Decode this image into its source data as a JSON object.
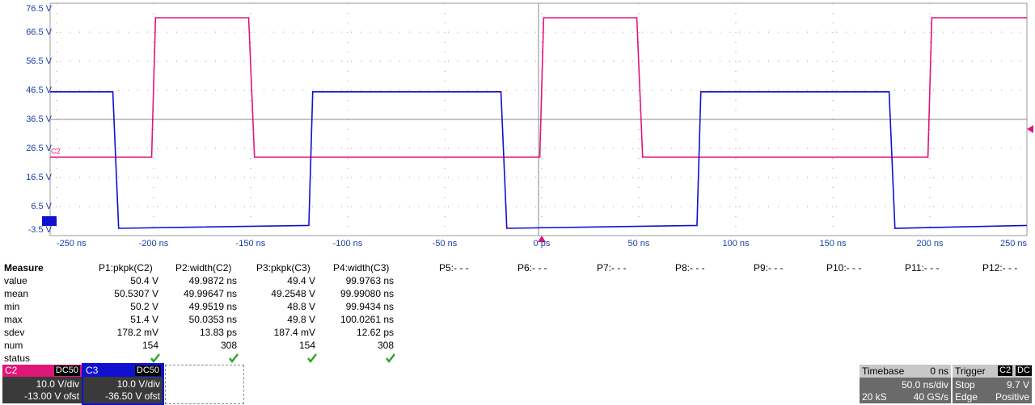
{
  "chart_data": {
    "type": "line",
    "series": [
      {
        "name": "C2",
        "color": "#e0157a",
        "x": [
          -253.3,
          -201,
          -199,
          -151,
          -148,
          -1,
          1,
          49,
          52,
          199,
          201,
          250
        ],
        "values": [
          23.5,
          23.5,
          71.5,
          71.5,
          23.5,
          23.5,
          71.5,
          71.5,
          23.5,
          23.5,
          71.5,
          71.5
        ]
      },
      {
        "name": "C3",
        "color": "#1010d0",
        "x": [
          -253.3,
          -221,
          -218,
          -120,
          -118,
          -21,
          -18,
          80,
          82,
          179,
          182,
          250
        ],
        "values": [
          46,
          46,
          -1,
          0,
          46,
          46,
          -1,
          0,
          46,
          46,
          -1,
          0
        ]
      }
    ],
    "xlim": [
      -253.3,
      250
    ],
    "xticks": [
      {
        "value": -250,
        "label": "-250 ns"
      },
      {
        "value": -200,
        "label": "-200 ns"
      },
      {
        "value": -150,
        "label": "-150 ns"
      },
      {
        "value": -100,
        "label": "-100 ns"
      },
      {
        "value": -50,
        "label": "-50 ns"
      },
      {
        "value": 0,
        "label": "0 ps"
      },
      {
        "value": 50,
        "label": "50 ns"
      },
      {
        "value": 100,
        "label": "100 ns"
      },
      {
        "value": 150,
        "label": "150 ns"
      },
      {
        "value": 200,
        "label": "200 ns"
      },
      {
        "value": 250,
        "label": "250 ns"
      }
    ],
    "ylim": [
      -3.5,
      76.5
    ],
    "yticks": [
      {
        "value": 76.5,
        "label": "76.5 V"
      },
      {
        "value": 66.5,
        "label": "66.5 V"
      },
      {
        "value": 56.5,
        "label": "56.5 V"
      },
      {
        "value": 46.5,
        "label": "46.5 V"
      },
      {
        "value": 36.5,
        "label": "36.5 V"
      },
      {
        "value": 26.5,
        "label": "26.5 V"
      },
      {
        "value": 16.5,
        "label": "16.5 V"
      },
      {
        "value": 6.5,
        "label": "6.5 V"
      },
      {
        "value": -3.5,
        "label": "-3.5 V"
      }
    ],
    "grid": true
  },
  "measure": {
    "header": [
      "Measure",
      "P1:pkpk(C2)",
      "P2:width(C2)",
      "P3:pkpk(C3)",
      "P4:width(C3)",
      "P5:- - -",
      "P6:- - -",
      "P7:- - -",
      "P8:- - -",
      "P9:- - -",
      "P10:- - -",
      "P11:- - -",
      "P12:- - -"
    ],
    "rows": [
      {
        "label": "value",
        "cells": [
          "50.4 V",
          "49.9872 ns",
          "49.4 V",
          "99.9763 ns"
        ]
      },
      {
        "label": "mean",
        "cells": [
          "50.5307 V",
          "49.99647 ns",
          "49.2548 V",
          "99.99080 ns"
        ]
      },
      {
        "label": "min",
        "cells": [
          "50.2 V",
          "49.9519 ns",
          "48.8 V",
          "99.9434 ns"
        ]
      },
      {
        "label": "max",
        "cells": [
          "51.4 V",
          "50.0353 ns",
          "49.8 V",
          "100.0261 ns"
        ]
      },
      {
        "label": "sdev",
        "cells": [
          "178.2 mV",
          "13.83 ps",
          "187.4 mV",
          "12.62 ps"
        ]
      },
      {
        "label": "num",
        "cells": [
          "154",
          "308",
          "154",
          "308"
        ]
      },
      {
        "label": "status"
      }
    ]
  },
  "channels": [
    {
      "name": "C2",
      "coupling": "DC50",
      "scale": "10.0 V/div",
      "offset": "-13.00 V ofst"
    },
    {
      "name": "C3",
      "coupling": "DC50",
      "scale": "10.0 V/div",
      "offset": "-36.50 V ofst"
    }
  ],
  "timebase": {
    "title": "Timebase",
    "delay": "0 ns",
    "scale": "50.0 ns/div",
    "samples": "20 kS",
    "rate": "40 GS/s"
  },
  "trigger": {
    "title": "Trigger",
    "source": "C2",
    "coupling": "DC",
    "mode": "Stop",
    "level": "9.7 V",
    "type": "Edge",
    "slope": "Positive"
  }
}
